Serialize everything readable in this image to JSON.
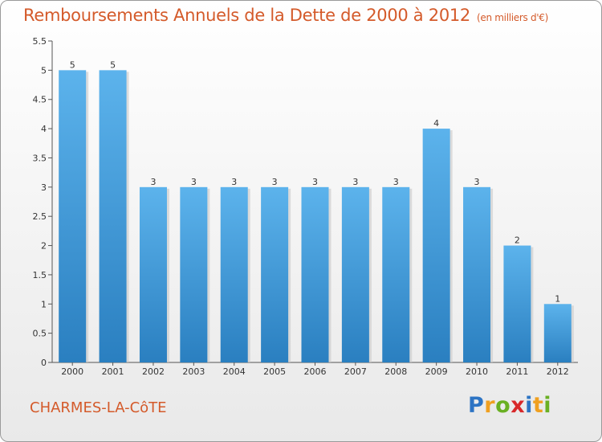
{
  "title": "Remboursements Annuels de la Dette de 2000 à 2012",
  "unit": "(en milliers d'€)",
  "commune": "CHARMES-LA-CôTE",
  "logo": {
    "letters": [
      "P",
      "r",
      "o",
      "x",
      "i",
      "t",
      "i"
    ],
    "colors": [
      "#2d74c4",
      "#f0a020",
      "#6ab023",
      "#d8282a",
      "#2d74c4",
      "#f0a020",
      "#6ab023"
    ]
  },
  "colors": {
    "bar": "#4aa3e0",
    "title": "#d45a2a",
    "background": "#f5f5f5"
  },
  "chart_data": {
    "type": "bar",
    "categories": [
      "2000",
      "2001",
      "2002",
      "2003",
      "2004",
      "2005",
      "2006",
      "2007",
      "2008",
      "2009",
      "2010",
      "2011",
      "2012"
    ],
    "values": [
      5,
      5,
      3,
      3,
      3,
      3,
      3,
      3,
      3,
      4,
      3,
      2,
      1
    ],
    "data_labels": [
      "5",
      "5",
      "3",
      "3",
      "3",
      "3",
      "3",
      "3",
      "3",
      "4",
      "3",
      "2",
      "1"
    ],
    "ylim": [
      0,
      5.5
    ],
    "yticks": [
      0,
      0.5,
      1,
      1.5,
      2,
      2.5,
      3,
      3.5,
      4,
      4.5,
      5,
      5.5
    ],
    "ytick_labels": [
      "0",
      "0.5",
      "1",
      "1.5",
      "2",
      "2.5",
      "3",
      "3.5",
      "4",
      "4.5",
      "5",
      "5.5"
    ],
    "grid": false,
    "legend": "none"
  }
}
